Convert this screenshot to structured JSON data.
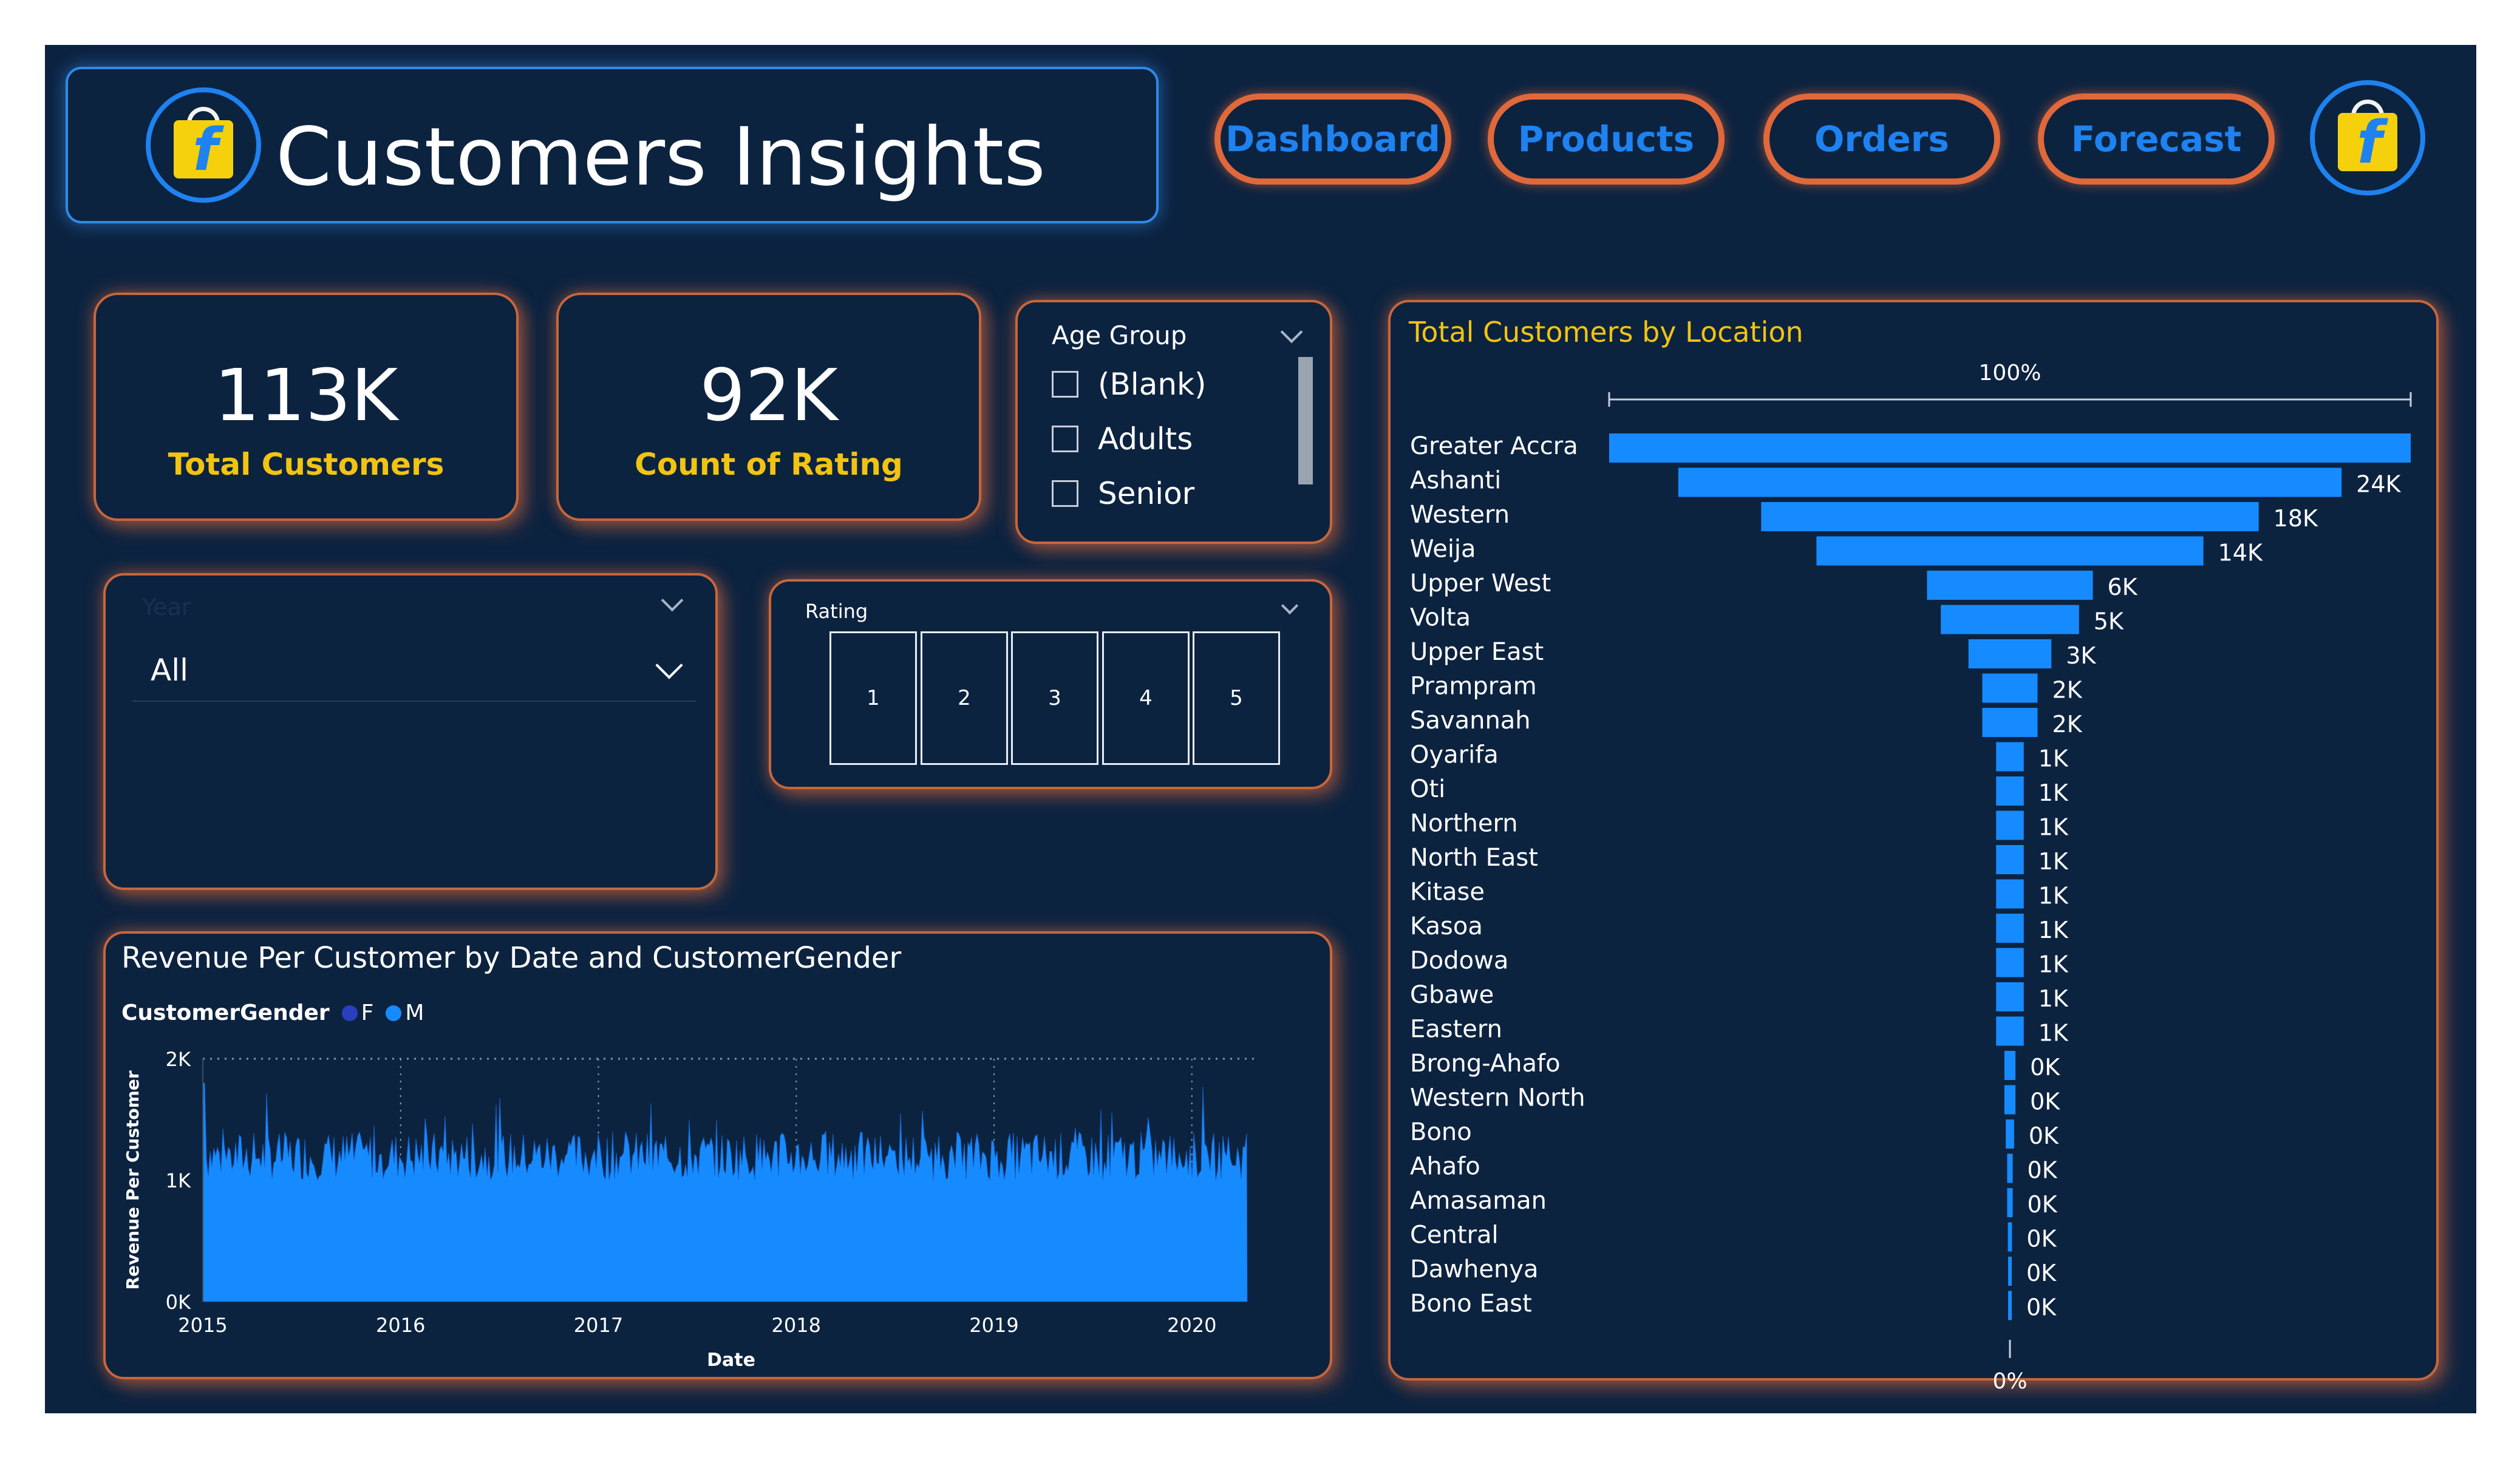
{
  "header": {
    "title": "Customers Insights",
    "logo_icon": "flipkart-bag-icon"
  },
  "nav": [
    {
      "label": "Dashboard"
    },
    {
      "label": "Products"
    },
    {
      "label": "Orders"
    },
    {
      "label": "Forecast"
    }
  ],
  "kpis": {
    "total_customers": {
      "value": "113K",
      "label": "Total Customers"
    },
    "count_rating": {
      "value": "92K",
      "label": "Count of Rating"
    }
  },
  "age_group": {
    "title": "Age Group",
    "options": [
      "(Blank)",
      "Adults",
      "Senior"
    ]
  },
  "year_filter": {
    "title": "Year",
    "selected": "All"
  },
  "rating_filter": {
    "title": "Rating",
    "options": [
      "1",
      "2",
      "3",
      "4",
      "5"
    ]
  },
  "colors": {
    "accent": "#1e82f0",
    "background": "#0c2340",
    "border": "#e0683a",
    "kpi_label": "#f2c311"
  },
  "chart_data": [
    {
      "type": "area",
      "title": "Revenue Per Customer by Date and CustomerGender",
      "legend_title": "CustomerGender",
      "legend_position": "top-left",
      "series": [
        {
          "name": "F",
          "color": "#2a3fbf"
        },
        {
          "name": "M",
          "color": "#168bff"
        }
      ],
      "xlabel": "Date",
      "ylabel": "Revenue Per Customer",
      "x_ticks": [
        "2015",
        "2016",
        "2017",
        "2018",
        "2019",
        "2020"
      ],
      "y_ticks": [
        "0K",
        "1K",
        "2K"
      ],
      "ylim": [
        0,
        2000
      ],
      "typical_range": [
        1000,
        1400
      ],
      "grid": "dotted"
    },
    {
      "type": "bar",
      "orientation": "funnel",
      "title": "Total Customers by Location",
      "top_label": "100%",
      "bottom_label": "0%",
      "categories": [
        "Greater Accra",
        "Ashanti",
        "Western",
        "Weija",
        "Upper West",
        "Volta",
        "Upper East",
        "Prampram",
        "Savannah",
        "Oyarifa",
        "Oti",
        "Northern",
        "North East",
        "Kitase",
        "Kasoa",
        "Dodowa",
        "Gbawe",
        "Eastern",
        "Brong-Ahafo",
        "Western North",
        "Bono",
        "Ahafo",
        "Amasaman",
        "Central",
        "Dawhenya",
        "Bono East"
      ],
      "values": [
        29000,
        24000,
        18000,
        14000,
        6000,
        5000,
        3000,
        2000,
        2000,
        1000,
        1000,
        1000,
        1000,
        1000,
        1000,
        1000,
        1000,
        1000,
        400,
        400,
        300,
        200,
        200,
        150,
        100,
        50
      ],
      "value_labels": [
        "",
        "24K",
        "18K",
        "14K",
        "6K",
        "5K",
        "3K",
        "2K",
        "2K",
        "1K",
        "1K",
        "1K",
        "1K",
        "1K",
        "1K",
        "1K",
        "1K",
        "1K",
        "0K",
        "0K",
        "0K",
        "0K",
        "0K",
        "0K",
        "0K",
        "0K"
      ]
    }
  ]
}
